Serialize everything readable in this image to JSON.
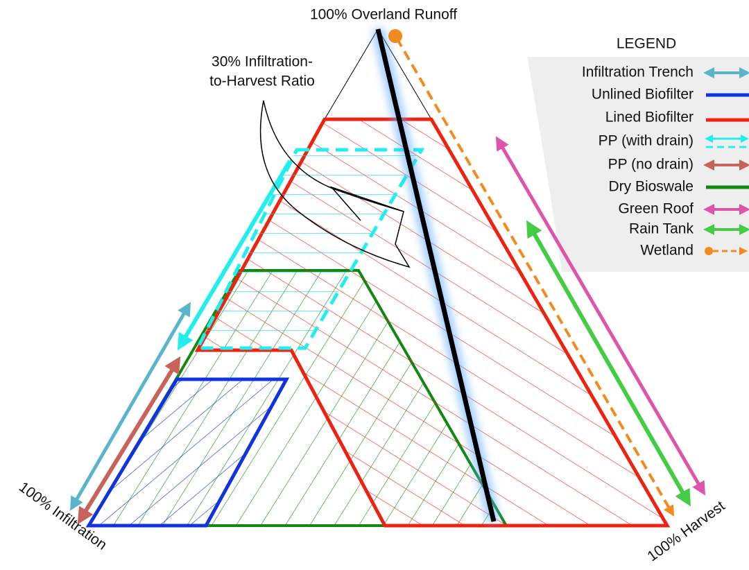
{
  "title": "100% Overland Runoff",
  "corners": {
    "left": "100% Infiltration",
    "right": "100% Harvest"
  },
  "annotation": [
    "30% Infiltration-",
    "to-Harvest Ratio"
  ],
  "legend": {
    "title": "LEGEND",
    "items": [
      "Infiltration Trench",
      "Unlined Biofilter",
      "Lined Biofilter",
      "PP (with drain)",
      "PP (no drain)",
      "Dry Bioswale",
      "Green Roof",
      "Rain Tank",
      "Wetland"
    ]
  }
}
